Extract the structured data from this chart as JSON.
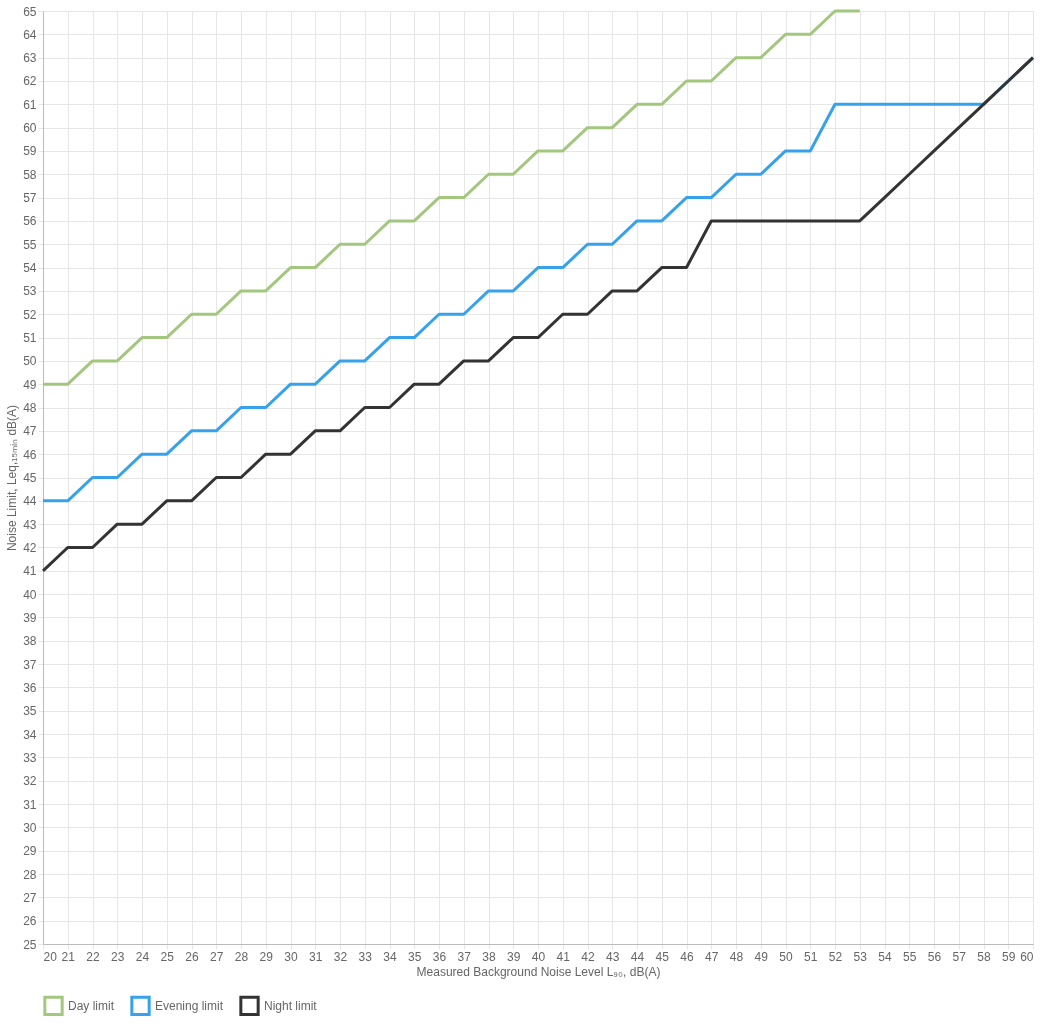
{
  "chart_data": {
    "type": "line",
    "xlabel": "Measured Background Noise Level L₉₀, dB(A)",
    "ylabel": "Noise Limit, Leq,₁₅ₘᵢₙ dB(A)",
    "xlim": [
      20,
      60
    ],
    "xticks": [
      20,
      21,
      22,
      23,
      24,
      25,
      26,
      27,
      28,
      29,
      30,
      31,
      32,
      33,
      34,
      35,
      36,
      37,
      38,
      39,
      40,
      41,
      42,
      43,
      44,
      45,
      46,
      47,
      48,
      49,
      50,
      51,
      52,
      53,
      54,
      55,
      56,
      57,
      58,
      59,
      60
    ],
    "ylim": [
      25,
      65
    ],
    "yticks": [
      25,
      26,
      27,
      28,
      29,
      30,
      31,
      32,
      33,
      34,
      35,
      36,
      37,
      38,
      39,
      40,
      41,
      42,
      43,
      44,
      45,
      46,
      47,
      48,
      49,
      50,
      51,
      52,
      53,
      54,
      55,
      56,
      57,
      58,
      59,
      60,
      61,
      62,
      63,
      64,
      65
    ],
    "grid": true,
    "legend": "bottom",
    "marker": "none",
    "line_style": "solid",
    "series": [
      {
        "name": "Day limit",
        "color": "#a3c77f",
        "x": [
          20,
          21,
          22,
          23,
          24,
          25,
          26,
          27,
          28,
          29,
          30,
          31,
          32,
          33,
          34,
          35,
          36,
          37,
          38,
          39,
          40,
          41,
          42,
          43,
          44,
          45,
          46,
          47,
          48,
          49,
          50,
          51,
          52,
          53
        ],
        "values": [
          49,
          49,
          50,
          50,
          51,
          51,
          52,
          52,
          53,
          53,
          54,
          54,
          55,
          55,
          56,
          56,
          57,
          57,
          58,
          58,
          59,
          59,
          60,
          60,
          61,
          61,
          62,
          62,
          63,
          63,
          64,
          64,
          65,
          65
        ]
      },
      {
        "name": "Evening limit",
        "color": "#36a2eb",
        "x": [
          20,
          21,
          22,
          23,
          24,
          25,
          26,
          27,
          28,
          29,
          30,
          31,
          32,
          33,
          34,
          35,
          36,
          37,
          38,
          39,
          40,
          41,
          42,
          43,
          44,
          45,
          46,
          47,
          48,
          49,
          50,
          51,
          52,
          53,
          54,
          55,
          56,
          57,
          58,
          59,
          60
        ],
        "values": [
          44,
          44,
          45,
          45,
          46,
          46,
          47,
          47,
          48,
          48,
          49,
          49,
          50,
          50,
          51,
          51,
          52,
          52,
          53,
          53,
          54,
          54,
          55,
          55,
          56,
          56,
          57,
          57,
          58,
          58,
          59,
          59,
          61,
          61,
          61,
          61,
          61,
          61,
          61,
          62,
          63
        ]
      },
      {
        "name": "Night limit",
        "color": "#333333",
        "x": [
          20,
          21,
          22,
          23,
          24,
          25,
          26,
          27,
          28,
          29,
          30,
          31,
          32,
          33,
          34,
          35,
          36,
          37,
          38,
          39,
          40,
          41,
          42,
          43,
          44,
          45,
          46,
          47,
          48,
          49,
          50,
          51,
          52,
          53,
          54,
          55,
          56,
          57,
          58,
          59,
          60
        ],
        "values": [
          41,
          42,
          42,
          43,
          43,
          44,
          44,
          45,
          45,
          46,
          46,
          47,
          47,
          48,
          48,
          49,
          49,
          50,
          50,
          51,
          51,
          52,
          52,
          53,
          53,
          54,
          54,
          56,
          56,
          56,
          56,
          56,
          56,
          56,
          57,
          58,
          59,
          60,
          61,
          62,
          63
        ]
      }
    ]
  }
}
